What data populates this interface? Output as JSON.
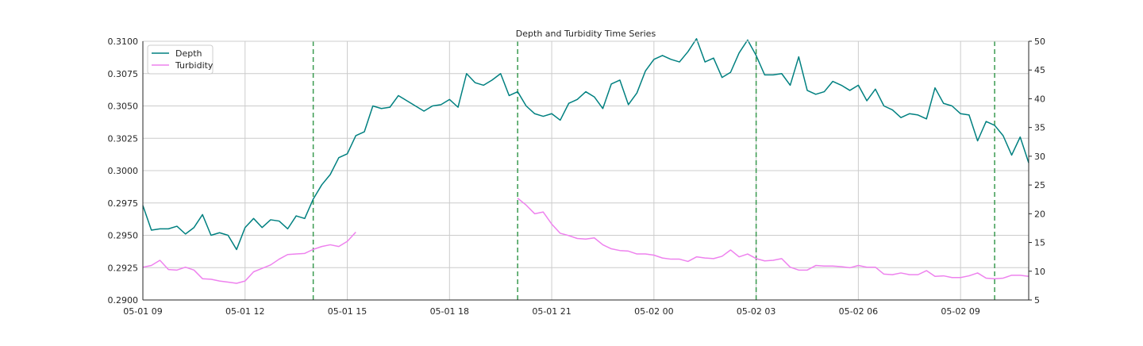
{
  "chart_data": {
    "type": "line",
    "title": "Depth and Turbidity Time Series",
    "xlabel": "",
    "ylabel": "",
    "grid": true,
    "legend_position": "top-left",
    "x_start": "05-01 09",
    "x_end": "05-02 11",
    "x_ticks": [
      "05-01 09",
      "05-01 12",
      "05-01 15",
      "05-01 18",
      "05-01 21",
      "05-02 00",
      "05-02 03",
      "05-02 06",
      "05-02 09"
    ],
    "y_left_lim": [
      0.29,
      0.31
    ],
    "y_left_ticks": [
      "0.2900",
      "0.2925",
      "0.2950",
      "0.2975",
      "0.3000",
      "0.3025",
      "0.3050",
      "0.3075",
      "0.3100"
    ],
    "y_right_lim": [
      5,
      50
    ],
    "y_right_ticks": [
      "5",
      "10",
      "15",
      "20",
      "25",
      "30",
      "35",
      "40",
      "45",
      "50"
    ],
    "vertical_lines": [
      "05-01 14:00",
      "05-01 20:00",
      "05-02 03:00",
      "05-02 10:00"
    ],
    "series": [
      {
        "name": "Depth",
        "axis": "left",
        "color": "#008080",
        "x": [
          "05-01 09:00",
          "05-01 09:15",
          "05-01 09:30",
          "05-01 09:45",
          "05-01 10:00",
          "05-01 10:15",
          "05-01 10:30",
          "05-01 10:45",
          "05-01 11:00",
          "05-01 11:15",
          "05-01 11:30",
          "05-01 11:45",
          "05-01 12:00",
          "05-01 12:15",
          "05-01 12:30",
          "05-01 12:45",
          "05-01 13:00",
          "05-01 13:15",
          "05-01 13:30",
          "05-01 13:45",
          "05-01 14:00",
          "05-01 14:15",
          "05-01 14:30",
          "05-01 14:45",
          "05-01 15:00",
          "05-01 15:15",
          "05-01 15:30",
          "05-01 15:45",
          "05-01 16:00",
          "05-01 16:15",
          "05-01 16:30",
          "05-01 16:45",
          "05-01 17:00",
          "05-01 17:15",
          "05-01 17:30",
          "05-01 17:45",
          "05-01 18:00",
          "05-01 18:15",
          "05-01 18:30",
          "05-01 18:45",
          "05-01 19:00",
          "05-01 19:15",
          "05-01 19:30",
          "05-01 19:45",
          "05-01 20:00",
          "05-01 20:15",
          "05-01 20:30",
          "05-01 20:45",
          "05-01 21:00",
          "05-01 21:15",
          "05-01 21:30",
          "05-01 21:45",
          "05-01 22:00",
          "05-01 22:15",
          "05-01 22:30",
          "05-01 22:45",
          "05-01 23:00",
          "05-01 23:15",
          "05-01 23:30",
          "05-01 23:45",
          "05-02 00:00",
          "05-02 00:15",
          "05-02 00:30",
          "05-02 00:45",
          "05-02 01:00",
          "05-02 01:15",
          "05-02 01:30",
          "05-02 01:45",
          "05-02 02:00",
          "05-02 02:15",
          "05-02 02:30",
          "05-02 02:45",
          "05-02 03:00",
          "05-02 03:15",
          "05-02 03:30",
          "05-02 03:45",
          "05-02 04:00",
          "05-02 04:15",
          "05-02 04:30",
          "05-02 04:45",
          "05-02 05:00",
          "05-02 05:15",
          "05-02 05:30",
          "05-02 05:45",
          "05-02 06:00",
          "05-02 06:15",
          "05-02 06:30",
          "05-02 06:45",
          "05-02 07:00",
          "05-02 07:15",
          "05-02 07:30",
          "05-02 07:45",
          "05-02 08:00",
          "05-02 08:15",
          "05-02 08:30",
          "05-02 08:45",
          "05-02 09:00",
          "05-02 09:15",
          "05-02 09:30",
          "05-02 09:45",
          "05-02 10:00",
          "05-02 10:15",
          "05-02 10:30",
          "05-02 10:45",
          "05-02 11:00"
        ],
        "values": [
          0.2973,
          0.2954,
          0.2955,
          0.2955,
          0.2957,
          0.2951,
          0.2956,
          0.2966,
          0.295,
          0.2952,
          0.295,
          0.2939,
          0.2956,
          0.2963,
          0.2956,
          0.2962,
          0.2961,
          0.2955,
          0.2965,
          0.2963,
          0.2978,
          0.2989,
          0.2997,
          0.301,
          0.3013,
          0.3027,
          0.303,
          0.305,
          0.3048,
          0.3049,
          0.3058,
          0.3054,
          0.305,
          0.3046,
          0.305,
          0.3051,
          0.3055,
          0.3049,
          0.3075,
          0.3068,
          0.3066,
          0.307,
          0.3075,
          0.3058,
          0.3061,
          0.305,
          0.3044,
          0.3042,
          0.3044,
          0.3039,
          0.3052,
          0.3055,
          0.3061,
          0.3057,
          0.3048,
          0.3067,
          0.307,
          0.3051,
          0.306,
          0.3077,
          0.3086,
          0.3089,
          0.3086,
          0.3084,
          0.3092,
          0.3102,
          0.3084,
          0.3087,
          0.3072,
          0.3076,
          0.3091,
          0.3101,
          0.3089,
          0.3074,
          0.3074,
          0.3075,
          0.3066,
          0.3088,
          0.3062,
          0.3059,
          0.3061,
          0.3069,
          0.3066,
          0.3062,
          0.3066,
          0.3054,
          0.3063,
          0.305,
          0.3047,
          0.3041,
          0.3044,
          0.3043,
          0.304,
          0.3064,
          0.3052,
          0.305,
          0.3044,
          0.3043,
          0.3023,
          0.3038,
          0.3035,
          0.3027,
          0.3012,
          0.3026,
          0.3006
        ]
      },
      {
        "name": "Turbidity",
        "axis": "right",
        "color": "#ee82ee",
        "x": [
          "05-01 09:00",
          "05-01 09:15",
          "05-01 09:30",
          "05-01 09:45",
          "05-01 10:00",
          "05-01 10:15",
          "05-01 10:30",
          "05-01 10:45",
          "05-01 11:00",
          "05-01 11:15",
          "05-01 11:30",
          "05-01 11:45",
          "05-01 12:00",
          "05-01 12:15",
          "05-01 12:30",
          "05-01 12:45",
          "05-01 13:00",
          "05-01 13:15",
          "05-01 13:30",
          "05-01 13:45",
          "05-01 14:00",
          "05-01 14:15",
          "05-01 14:30",
          "05-01 14:45",
          "05-01 15:00",
          "05-01 15:15",
          null,
          "05-01 20:00",
          "05-01 20:15",
          "05-01 20:30",
          "05-01 20:45",
          "05-01 21:00",
          "05-01 21:15",
          "05-01 21:30",
          "05-01 21:45",
          "05-01 22:00",
          "05-01 22:15",
          "05-01 22:30",
          "05-01 22:45",
          "05-01 23:00",
          "05-01 23:15",
          "05-01 23:30",
          "05-01 23:45",
          "05-02 00:00",
          "05-02 00:15",
          "05-02 00:30",
          "05-02 00:45",
          "05-02 01:00",
          "05-02 01:15",
          "05-02 01:30",
          "05-02 01:45",
          "05-02 02:00",
          "05-02 02:15",
          "05-02 02:30",
          "05-02 02:45",
          "05-02 03:00",
          "05-02 03:15",
          "05-02 03:30",
          "05-02 03:45",
          "05-02 04:00",
          "05-02 04:15",
          "05-02 04:30",
          "05-02 04:45",
          "05-02 05:00",
          "05-02 05:15",
          "05-02 05:30",
          "05-02 05:45",
          "05-02 06:00",
          "05-02 06:15",
          "05-02 06:30",
          "05-02 06:45",
          "05-02 07:00",
          "05-02 07:15",
          "05-02 07:30",
          "05-02 07:45",
          "05-02 08:00",
          "05-02 08:15",
          "05-02 08:30",
          "05-02 08:45",
          "05-02 09:00",
          "05-02 09:15",
          "05-02 09:30",
          "05-02 09:45",
          "05-02 10:00",
          "05-02 10:15",
          "05-02 10:30",
          "05-02 10:45",
          "05-02 11:00"
        ],
        "values": [
          10.7,
          11.0,
          11.9,
          10.3,
          10.2,
          10.7,
          10.2,
          8.7,
          8.6,
          8.3,
          8.1,
          7.9,
          8.3,
          9.9,
          10.5,
          11.1,
          12.1,
          12.9,
          13.0,
          13.1,
          13.8,
          14.3,
          14.6,
          14.3,
          15.2,
          16.8,
          null,
          22.7,
          21.5,
          20.0,
          20.3,
          18.2,
          16.6,
          16.2,
          15.7,
          15.6,
          15.8,
          14.6,
          13.9,
          13.6,
          13.5,
          13.0,
          13.0,
          12.8,
          12.3,
          12.1,
          12.1,
          11.7,
          12.5,
          12.3,
          12.2,
          12.6,
          13.7,
          12.5,
          13.0,
          12.2,
          11.8,
          11.9,
          12.2,
          10.7,
          10.2,
          10.2,
          11.0,
          10.9,
          10.9,
          10.8,
          10.6,
          11.0,
          10.7,
          10.7,
          9.5,
          9.4,
          9.7,
          9.4,
          9.4,
          10.1,
          9.1,
          9.2,
          8.9,
          8.9,
          9.2,
          9.7,
          8.8,
          8.7,
          8.8,
          9.3,
          9.3,
          9.1
        ]
      }
    ]
  }
}
